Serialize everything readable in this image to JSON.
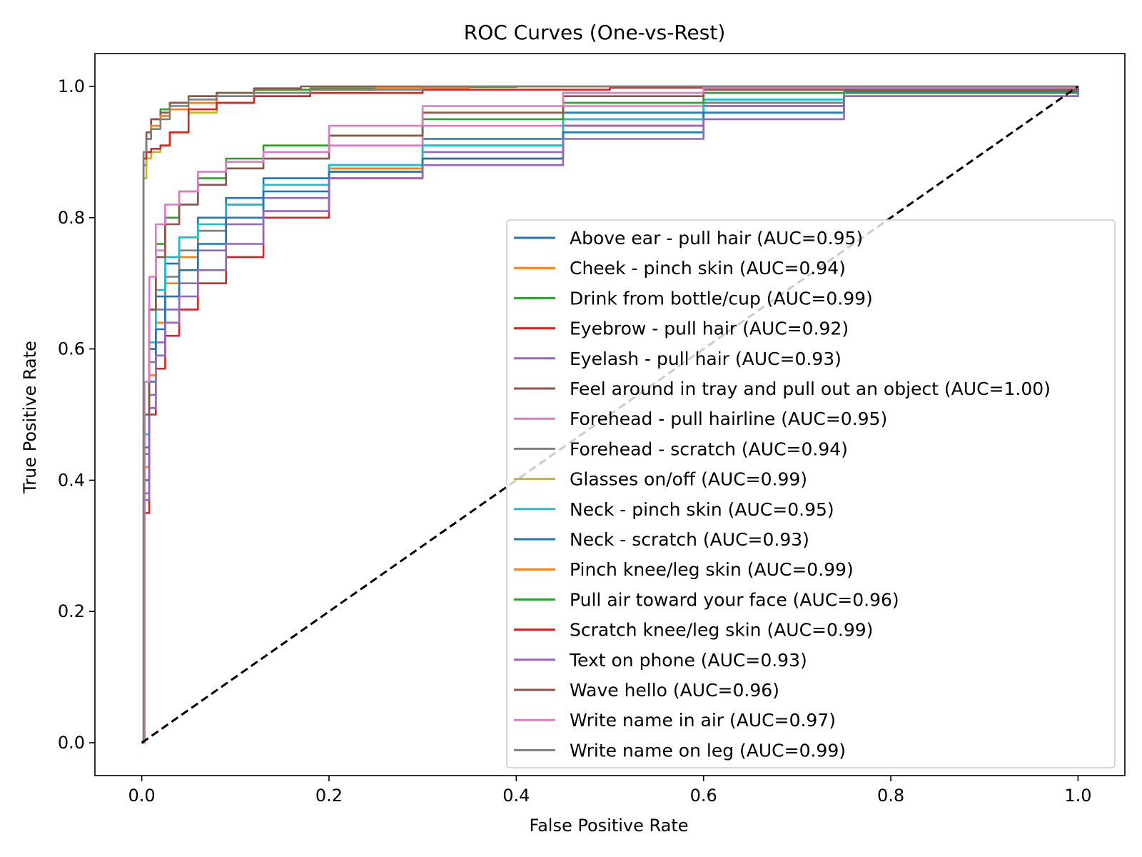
{
  "chart_data": {
    "type": "line",
    "title": "ROC Curves (One-vs-Rest)",
    "xlabel": "False Positive Rate",
    "ylabel": "True Positive Rate",
    "xlim": [
      -0.05,
      1.05
    ],
    "ylim": [
      -0.05,
      1.05
    ],
    "xticks": [
      0.0,
      0.2,
      0.4,
      0.6,
      0.8,
      1.0
    ],
    "yticks": [
      0.0,
      0.2,
      0.4,
      0.6,
      0.8,
      1.0
    ],
    "xtick_labels": [
      "0.0",
      "0.2",
      "0.4",
      "0.6",
      "0.8",
      "1.0"
    ],
    "ytick_labels": [
      "0.0",
      "0.2",
      "0.4",
      "0.6",
      "0.8",
      "1.0"
    ],
    "grid": false,
    "legend_position": "lower-right",
    "diagonal": {
      "x": [
        0,
        1
      ],
      "y": [
        0,
        1
      ],
      "color": "#000000",
      "dash": true
    },
    "series": [
      {
        "name": "Above ear - pull hair (AUC=0.95)",
        "color": "#1f77b4",
        "x": [
          0,
          0.003,
          0.008,
          0.015,
          0.025,
          0.04,
          0.06,
          0.09,
          0.13,
          0.2,
          0.3,
          0.45,
          0.6,
          0.75,
          1.0
        ],
        "y": [
          0,
          0.45,
          0.6,
          0.68,
          0.73,
          0.77,
          0.8,
          0.83,
          0.86,
          0.88,
          0.92,
          0.96,
          0.98,
          0.993,
          1.0
        ]
      },
      {
        "name": "Cheek - pinch skin (AUC=0.94)",
        "color": "#ff7f0e",
        "x": [
          0,
          0.003,
          0.008,
          0.015,
          0.025,
          0.04,
          0.06,
          0.09,
          0.13,
          0.2,
          0.3,
          0.45,
          0.6,
          0.75,
          1.0
        ],
        "y": [
          0,
          0.42,
          0.56,
          0.64,
          0.7,
          0.74,
          0.78,
          0.82,
          0.85,
          0.875,
          0.91,
          0.95,
          0.975,
          0.99,
          1.0
        ]
      },
      {
        "name": "Drink from bottle/cup (AUC=0.99)",
        "color": "#2ca02c",
        "x": [
          0,
          0.002,
          0.005,
          0.01,
          0.02,
          0.03,
          0.05,
          0.08,
          0.12,
          0.18,
          0.25,
          0.4,
          1.0
        ],
        "y": [
          0,
          0.88,
          0.92,
          0.95,
          0.965,
          0.975,
          0.985,
          0.99,
          0.995,
          0.997,
          0.999,
          1.0,
          1.0
        ]
      },
      {
        "name": "Eyebrow - pull hair (AUC=0.92)",
        "color": "#d62728",
        "x": [
          0,
          0.003,
          0.008,
          0.015,
          0.025,
          0.04,
          0.06,
          0.09,
          0.13,
          0.2,
          0.3,
          0.45,
          0.6,
          0.75,
          1.0
        ],
        "y": [
          0,
          0.35,
          0.5,
          0.57,
          0.62,
          0.66,
          0.7,
          0.74,
          0.8,
          0.86,
          0.89,
          0.94,
          0.97,
          0.99,
          1.0
        ]
      },
      {
        "name": "Eyelash - pull hair (AUC=0.93)",
        "color": "#9467bd",
        "x": [
          0,
          0.003,
          0.008,
          0.015,
          0.025,
          0.04,
          0.06,
          0.09,
          0.13,
          0.2,
          0.3,
          0.45,
          0.6,
          0.75,
          1.0
        ],
        "y": [
          0,
          0.38,
          0.53,
          0.61,
          0.66,
          0.7,
          0.75,
          0.79,
          0.83,
          0.87,
          0.9,
          0.94,
          0.97,
          0.99,
          1.0
        ]
      },
      {
        "name": "Feel around in tray and pull out an object (AUC=1.00)",
        "color": "#8c564b",
        "x": [
          0,
          0.002,
          0.005,
          0.01,
          0.02,
          0.03,
          0.05,
          0.08,
          0.12,
          0.17,
          1.0
        ],
        "y": [
          0,
          0.9,
          0.93,
          0.95,
          0.96,
          0.975,
          0.985,
          0.99,
          0.997,
          1.0,
          1.0
        ]
      },
      {
        "name": "Forehead - pull hairline (AUC=0.95)",
        "color": "#e377c2",
        "x": [
          0,
          0.003,
          0.008,
          0.015,
          0.025,
          0.04,
          0.06,
          0.09,
          0.13,
          0.2,
          0.3,
          0.45,
          0.6,
          1.0
        ],
        "y": [
          0,
          0.5,
          0.66,
          0.75,
          0.8,
          0.82,
          0.85,
          0.875,
          0.89,
          0.91,
          0.94,
          0.97,
          0.99,
          1.0
        ]
      },
      {
        "name": "Forehead - scratch (AUC=0.94)",
        "color": "#7f7f7f",
        "x": [
          0,
          0.003,
          0.008,
          0.015,
          0.025,
          0.04,
          0.06,
          0.09,
          0.13,
          0.2,
          0.3,
          0.45,
          0.6,
          0.75,
          1.0
        ],
        "y": [
          0,
          0.44,
          0.58,
          0.66,
          0.71,
          0.75,
          0.78,
          0.82,
          0.85,
          0.88,
          0.91,
          0.95,
          0.975,
          0.99,
          1.0
        ]
      },
      {
        "name": "Glasses on/off (AUC=0.99)",
        "color": "#bcbd22",
        "x": [
          0,
          0.002,
          0.005,
          0.01,
          0.02,
          0.03,
          0.05,
          0.08,
          0.12,
          0.18,
          0.3,
          1.0
        ],
        "y": [
          0,
          0.86,
          0.89,
          0.9,
          0.91,
          0.93,
          0.96,
          0.975,
          0.985,
          0.99,
          1.0,
          1.0
        ]
      },
      {
        "name": "Neck - pinch skin (AUC=0.95)",
        "color": "#17becf",
        "x": [
          0,
          0.003,
          0.008,
          0.015,
          0.025,
          0.04,
          0.06,
          0.09,
          0.13,
          0.2,
          0.3,
          0.45,
          0.6,
          0.75,
          1.0
        ],
        "y": [
          0,
          0.47,
          0.61,
          0.69,
          0.74,
          0.77,
          0.79,
          0.82,
          0.85,
          0.88,
          0.91,
          0.95,
          0.98,
          0.995,
          1.0
        ]
      },
      {
        "name": "Neck - scratch (AUC=0.93)",
        "color": "#1f77b4",
        "x": [
          0,
          0.003,
          0.008,
          0.015,
          0.025,
          0.04,
          0.06,
          0.09,
          0.13,
          0.2,
          0.3,
          0.45,
          0.6,
          0.75,
          1.0
        ],
        "y": [
          0,
          0.4,
          0.55,
          0.63,
          0.68,
          0.72,
          0.76,
          0.8,
          0.84,
          0.87,
          0.89,
          0.93,
          0.96,
          0.985,
          1.0
        ]
      },
      {
        "name": "Pinch knee/leg skin (AUC=0.99)",
        "color": "#ff7f0e",
        "x": [
          0,
          0.002,
          0.005,
          0.01,
          0.02,
          0.03,
          0.05,
          0.08,
          0.12,
          0.18,
          0.25,
          0.35,
          1.0
        ],
        "y": [
          0,
          0.89,
          0.92,
          0.94,
          0.955,
          0.965,
          0.975,
          0.985,
          0.99,
          0.995,
          0.998,
          1.0,
          1.0
        ]
      },
      {
        "name": "Pull air toward your face (AUC=0.96)",
        "color": "#2ca02c",
        "x": [
          0,
          0.003,
          0.008,
          0.015,
          0.025,
          0.04,
          0.06,
          0.09,
          0.13,
          0.2,
          0.3,
          0.45,
          0.6,
          1.0
        ],
        "y": [
          0,
          0.5,
          0.66,
          0.76,
          0.8,
          0.84,
          0.86,
          0.89,
          0.91,
          0.925,
          0.95,
          0.975,
          0.99,
          1.0
        ]
      },
      {
        "name": "Scratch knee/leg skin (AUC=0.99)",
        "color": "#d62728",
        "x": [
          0,
          0.002,
          0.005,
          0.01,
          0.02,
          0.03,
          0.05,
          0.08,
          0.12,
          0.18,
          0.3,
          0.5,
          1.0
        ],
        "y": [
          0,
          0.89,
          0.9,
          0.905,
          0.91,
          0.93,
          0.965,
          0.975,
          0.985,
          0.99,
          0.995,
          0.998,
          1.0
        ]
      },
      {
        "name": "Text on phone (AUC=0.93)",
        "color": "#9467bd",
        "x": [
          0,
          0.003,
          0.008,
          0.015,
          0.025,
          0.04,
          0.06,
          0.09,
          0.13,
          0.2,
          0.3,
          0.45,
          0.6,
          0.75,
          1.0
        ],
        "y": [
          0,
          0.37,
          0.51,
          0.59,
          0.64,
          0.68,
          0.72,
          0.76,
          0.81,
          0.86,
          0.88,
          0.92,
          0.95,
          0.985,
          1.0
        ]
      },
      {
        "name": "Wave hello (AUC=0.96)",
        "color": "#8c564b",
        "x": [
          0,
          0.003,
          0.008,
          0.015,
          0.025,
          0.04,
          0.06,
          0.09,
          0.13,
          0.2,
          0.3,
          0.45,
          0.6,
          1.0
        ],
        "y": [
          0,
          0.5,
          0.66,
          0.74,
          0.79,
          0.82,
          0.85,
          0.875,
          0.89,
          0.925,
          0.96,
          0.985,
          0.995,
          1.0
        ]
      },
      {
        "name": "Write name in air (AUC=0.97)",
        "color": "#e377c2",
        "x": [
          0,
          0.003,
          0.008,
          0.015,
          0.025,
          0.04,
          0.06,
          0.09,
          0.13,
          0.2,
          0.3,
          0.45,
          0.6,
          1.0
        ],
        "y": [
          0,
          0.55,
          0.71,
          0.79,
          0.82,
          0.84,
          0.87,
          0.885,
          0.9,
          0.94,
          0.97,
          0.99,
          0.998,
          1.0
        ]
      },
      {
        "name": "Write name on leg (AUC=0.99)",
        "color": "#7f7f7f",
        "x": [
          0,
          0.002,
          0.005,
          0.01,
          0.02,
          0.03,
          0.05,
          0.08,
          0.12,
          0.18,
          0.3,
          1.0
        ],
        "y": [
          0,
          0.9,
          0.92,
          0.935,
          0.95,
          0.97,
          0.98,
          0.985,
          0.99,
          0.995,
          1.0,
          1.0
        ]
      }
    ]
  }
}
